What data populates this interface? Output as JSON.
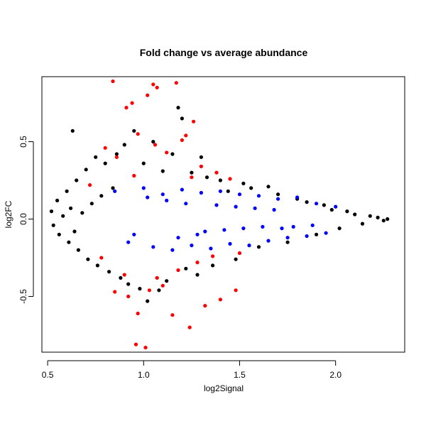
{
  "chart_data": {
    "type": "scatter",
    "title": "Fold change vs average abundance",
    "xlabel": "log2Signal",
    "ylabel": "log2FC",
    "xlim": [
      0.47,
      2.36
    ],
    "ylim": [
      -0.86,
      0.92
    ],
    "x_ticks": [
      0.5,
      1.0,
      1.5,
      2.0
    ],
    "x_tick_labels": [
      "0.5",
      "1.0",
      "1.5",
      "2.0"
    ],
    "y_ticks": [
      -0.5,
      0.0,
      0.5
    ],
    "y_tick_labels": [
      "-0.5",
      "0.0",
      "0.5"
    ],
    "grid": false,
    "legend": "none",
    "series": [
      {
        "color": "#000000",
        "points": [
          [
            0.52,
            0.05
          ],
          [
            0.53,
            -0.04
          ],
          [
            0.55,
            0.12
          ],
          [
            0.56,
            -0.1
          ],
          [
            0.58,
            0.02
          ],
          [
            0.6,
            0.18
          ],
          [
            0.61,
            -0.15
          ],
          [
            0.62,
            0.07
          ],
          [
            0.63,
            0.57
          ],
          [
            0.64,
            -0.08
          ],
          [
            0.65,
            0.25
          ],
          [
            0.66,
            -0.2
          ],
          [
            0.68,
            0.04
          ],
          [
            0.7,
            0.32
          ],
          [
            0.71,
            -0.26
          ],
          [
            0.73,
            0.1
          ],
          [
            0.75,
            0.4
          ],
          [
            0.76,
            -0.3
          ],
          [
            0.78,
            0.15
          ],
          [
            0.8,
            0.36
          ],
          [
            0.82,
            -0.34
          ],
          [
            0.84,
            0.2
          ],
          [
            0.86,
            0.42
          ],
          [
            0.88,
            -0.38
          ],
          [
            0.9,
            0.48
          ],
          [
            0.92,
            -0.42
          ],
          [
            0.95,
            0.57
          ],
          [
            0.98,
            -0.45
          ],
          [
            1.0,
            0.36
          ],
          [
            1.02,
            -0.53
          ],
          [
            1.05,
            0.5
          ],
          [
            1.08,
            -0.46
          ],
          [
            1.1,
            0.31
          ],
          [
            1.12,
            -0.4
          ],
          [
            1.15,
            0.42
          ],
          [
            1.18,
            0.72
          ],
          [
            1.2,
            0.65
          ],
          [
            1.22,
            -0.32
          ],
          [
            1.25,
            0.3
          ],
          [
            1.28,
            -0.36
          ],
          [
            1.3,
            0.4
          ],
          [
            1.33,
            0.27
          ],
          [
            1.36,
            -0.3
          ],
          [
            1.4,
            0.25
          ],
          [
            1.44,
            0.18
          ],
          [
            1.48,
            -0.26
          ],
          [
            1.52,
            0.23
          ],
          [
            1.56,
            0.2
          ],
          [
            1.6,
            -0.18
          ],
          [
            1.65,
            0.21
          ],
          [
            1.7,
            0.16
          ],
          [
            1.75,
            -0.15
          ],
          [
            1.8,
            0.13
          ],
          [
            1.85,
            0.11
          ],
          [
            1.9,
            -0.1
          ],
          [
            1.94,
            0.09
          ],
          [
            1.98,
            0.06
          ],
          [
            2.02,
            -0.06
          ],
          [
            2.06,
            0.05
          ],
          [
            2.1,
            0.03
          ],
          [
            2.14,
            -0.03
          ],
          [
            2.18,
            0.02
          ],
          [
            2.22,
            0.01
          ],
          [
            2.25,
            -0.01
          ],
          [
            2.27,
            0.0
          ]
        ]
      },
      {
        "color": "#ff0000",
        "points": [
          [
            0.84,
            0.89
          ],
          [
            0.91,
            0.72
          ],
          [
            0.94,
            0.75
          ],
          [
            1.02,
            0.8
          ],
          [
            1.05,
            0.87
          ],
          [
            1.07,
            0.85
          ],
          [
            1.17,
            0.88
          ],
          [
            1.22,
            0.54
          ],
          [
            1.26,
            0.63
          ],
          [
            0.8,
            0.46
          ],
          [
            0.86,
            0.4
          ],
          [
            0.97,
            0.55
          ],
          [
            1.06,
            0.48
          ],
          [
            1.12,
            0.43
          ],
          [
            1.2,
            0.51
          ],
          [
            1.3,
            0.34
          ],
          [
            1.38,
            0.3
          ],
          [
            1.45,
            0.26
          ],
          [
            0.78,
            -0.25
          ],
          [
            0.85,
            -0.47
          ],
          [
            0.9,
            -0.36
          ],
          [
            0.97,
            -0.61
          ],
          [
            1.03,
            -0.46
          ],
          [
            1.1,
            -0.43
          ],
          [
            1.15,
            -0.62
          ],
          [
            1.24,
            -0.7
          ],
          [
            1.32,
            -0.56
          ],
          [
            1.4,
            -0.52
          ],
          [
            1.48,
            -0.46
          ],
          [
            0.96,
            -0.81
          ],
          [
            1.01,
            -0.83
          ],
          [
            0.92,
            -0.5
          ],
          [
            1.07,
            -0.38
          ],
          [
            1.18,
            -0.33
          ],
          [
            1.28,
            -0.28
          ],
          [
            1.36,
            -0.24
          ],
          [
            1.5,
            -0.22
          ],
          [
            0.72,
            0.22
          ],
          [
            0.95,
            0.28
          ],
          [
            1.25,
            0.27
          ]
        ]
      },
      {
        "color": "#0000ff",
        "points": [
          [
            0.85,
            0.18
          ],
          [
            0.92,
            -0.15
          ],
          [
            1.0,
            0.2
          ],
          [
            1.05,
            -0.18
          ],
          [
            1.1,
            0.16
          ],
          [
            1.15,
            -0.2
          ],
          [
            1.2,
            0.19
          ],
          [
            1.25,
            -0.17
          ],
          [
            1.3,
            0.17
          ],
          [
            1.35,
            -0.19
          ],
          [
            1.4,
            0.18
          ],
          [
            1.45,
            -0.16
          ],
          [
            1.5,
            0.16
          ],
          [
            1.55,
            -0.17
          ],
          [
            1.6,
            0.15
          ],
          [
            1.65,
            -0.14
          ],
          [
            1.7,
            0.13
          ],
          [
            1.75,
            -0.12
          ],
          [
            1.8,
            0.14
          ],
          [
            1.85,
            -0.11
          ],
          [
            1.9,
            0.1
          ],
          [
            1.95,
            -0.09
          ],
          [
            2.0,
            0.08
          ],
          [
            1.32,
            -0.08
          ],
          [
            1.42,
            -0.07
          ],
          [
            1.52,
            -0.06
          ],
          [
            1.62,
            -0.05
          ],
          [
            1.72,
            -0.06
          ],
          [
            1.22,
            0.1
          ],
          [
            1.12,
            0.12
          ],
          [
            1.02,
            0.14
          ],
          [
            0.95,
            -0.1
          ],
          [
            1.18,
            -0.12
          ],
          [
            1.28,
            -0.1
          ],
          [
            1.38,
            0.09
          ],
          [
            1.48,
            0.08
          ],
          [
            1.58,
            0.07
          ],
          [
            1.68,
            0.06
          ],
          [
            1.78,
            -0.05
          ],
          [
            1.88,
            -0.04
          ]
        ]
      }
    ]
  }
}
